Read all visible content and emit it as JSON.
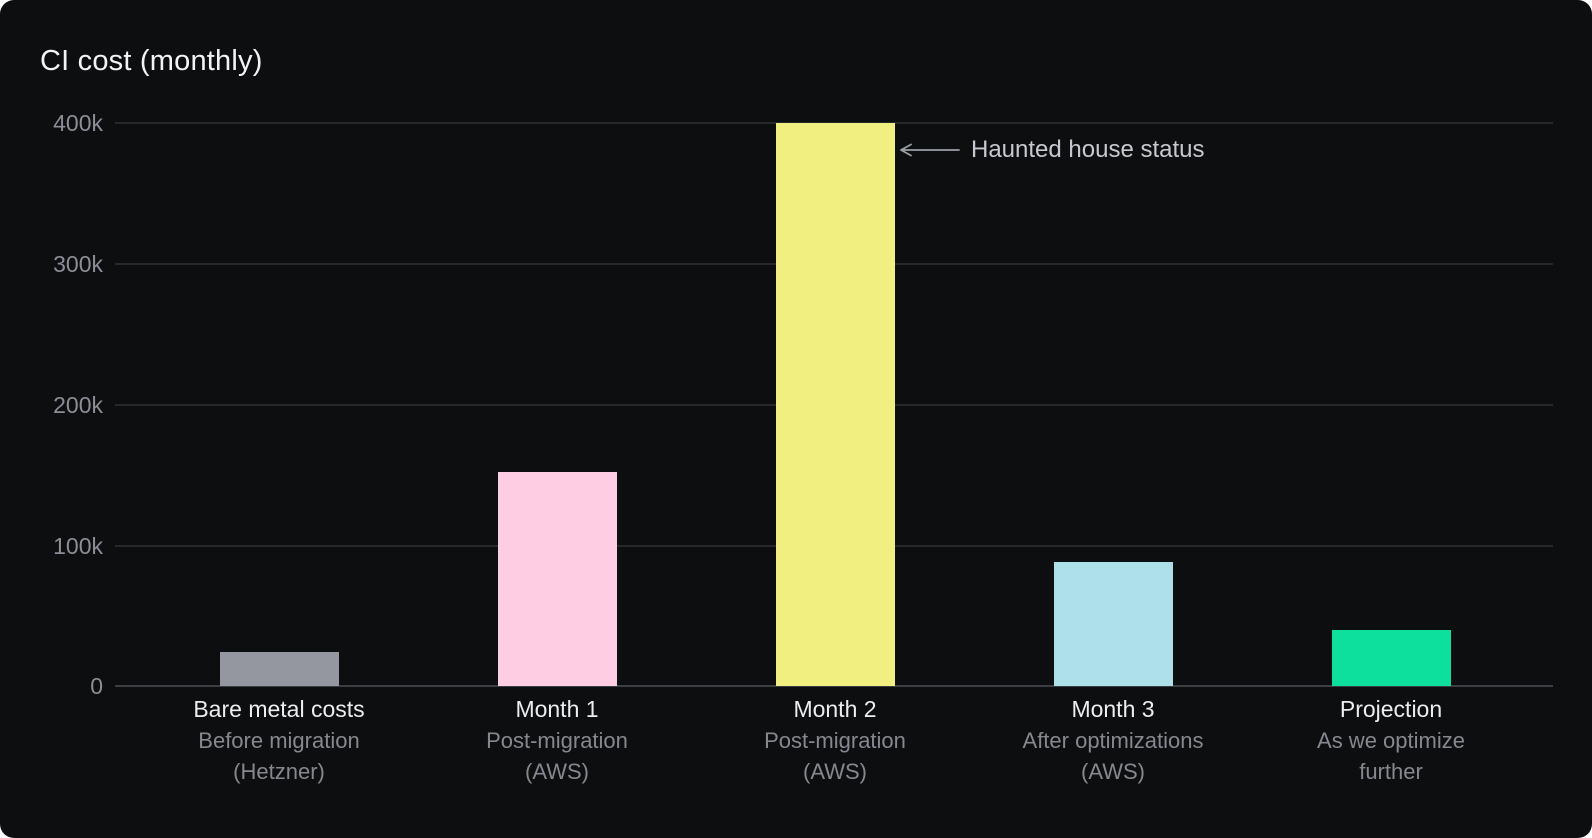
{
  "chart_data": {
    "type": "bar",
    "title": "CI cost (monthly)",
    "ylabel": "",
    "xlabel": "",
    "ylim": [
      0,
      400000
    ],
    "grid": "horizontal",
    "legend": "none",
    "yticks": [
      {
        "label": "400k",
        "value": 400000
      },
      {
        "label": "300k",
        "value": 300000
      },
      {
        "label": "200k",
        "value": 200000
      },
      {
        "label": "100k",
        "value": 100000
      },
      {
        "label": "0",
        "value": 0
      }
    ],
    "categories": [
      {
        "label": "Bare metal costs",
        "sub1": "Before migration",
        "sub2": "(Hetzner)"
      },
      {
        "label": "Month 1",
        "sub1": "Post-migration",
        "sub2": "(AWS)"
      },
      {
        "label": "Month 2",
        "sub1": "Post-migration",
        "sub2": "(AWS)"
      },
      {
        "label": "Month 3",
        "sub1": "After optimizations",
        "sub2": "(AWS)"
      },
      {
        "label": "Projection",
        "sub1": "As we optimize",
        "sub2": "further"
      }
    ],
    "values": [
      24000,
      152000,
      400000,
      88000,
      40000
    ],
    "bar_colors": [
      "#94979f",
      "#fdcde3",
      "#f0ef7f",
      "#aee0ea",
      "#0ddf9c"
    ],
    "annotation": {
      "icon": "left-arrow",
      "text": "Haunted house status",
      "target": "Month 2"
    }
  },
  "colors": {
    "panel_background": "#0d0e0f",
    "page_background": "#ffffff",
    "gridline": "#27282b",
    "zero_line": "#3b3e42",
    "title_text": "#f2f3f5",
    "tick_text": "#8b8e96",
    "category_main_text": "#ededef",
    "category_sub_text": "#85888f",
    "annotation_text": "#c6cad0",
    "annotation_arrow": "#9ba0a7"
  }
}
